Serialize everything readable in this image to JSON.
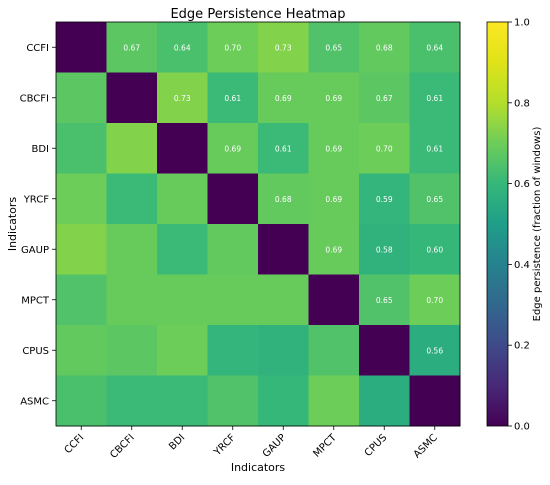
{
  "chart_data": {
    "type": "heatmap",
    "title": "Edge Persistence Heatmap",
    "xlabel": "Indicators",
    "ylabel": "Indicators",
    "rows": [
      "CCFI",
      "CBCFI",
      "BDI",
      "YRCF",
      "GAUP",
      "MPCT",
      "CPUS",
      "ASMC"
    ],
    "cols": [
      "CCFI",
      "CBCFI",
      "BDI",
      "YRCF",
      "GAUP",
      "MPCT",
      "CPUS",
      "ASMC"
    ],
    "values": [
      [
        0.0,
        0.67,
        0.64,
        0.7,
        0.73,
        0.65,
        0.68,
        0.64
      ],
      [
        0.67,
        0.0,
        0.73,
        0.61,
        0.69,
        0.69,
        0.67,
        0.61
      ],
      [
        0.64,
        0.73,
        0.0,
        0.69,
        0.61,
        0.69,
        0.7,
        0.61
      ],
      [
        0.7,
        0.61,
        0.69,
        0.0,
        0.68,
        0.69,
        0.59,
        0.65
      ],
      [
        0.73,
        0.69,
        0.61,
        0.68,
        0.0,
        0.69,
        0.58,
        0.6
      ],
      [
        0.65,
        0.69,
        0.69,
        0.69,
        0.69,
        0.0,
        0.65,
        0.7
      ],
      [
        0.68,
        0.67,
        0.7,
        0.59,
        0.58,
        0.65,
        0.0,
        0.56
      ],
      [
        0.64,
        0.61,
        0.61,
        0.65,
        0.6,
        0.7,
        0.56,
        0.0
      ]
    ],
    "labels": [
      [
        "",
        "0.67",
        "0.64",
        "0.70",
        "0.73",
        "0.65",
        "0.68",
        "0.64"
      ],
      [
        "",
        "",
        "0.73",
        "0.61",
        "0.69",
        "0.69",
        "0.67",
        "0.61"
      ],
      [
        "",
        "",
        "",
        "0.69",
        "0.61",
        "0.69",
        "0.70",
        "0.61"
      ],
      [
        "",
        "",
        "",
        "",
        "0.68",
        "0.69",
        "0.59",
        "0.65"
      ],
      [
        "",
        "",
        "",
        "",
        "",
        "0.69",
        "0.58",
        "0.60"
      ],
      [
        "",
        "",
        "",
        "",
        "",
        "",
        "0.65",
        "0.70"
      ],
      [
        "",
        "",
        "",
        "",
        "",
        "",
        "",
        "0.56"
      ],
      [
        "",
        "",
        "",
        "",
        "",
        "",
        "",
        ""
      ]
    ],
    "colormap": "viridis",
    "vmin": 0.0,
    "vmax": 1.0,
    "colorbar": {
      "label": "Edge persistence (fraction of windows)",
      "ticks": [
        0.0,
        0.2,
        0.4,
        0.6,
        0.8,
        1.0
      ],
      "tick_labels": [
        "0.0",
        "0.2",
        "0.4",
        "0.6",
        "0.8",
        "1.0"
      ]
    },
    "grid": false
  }
}
